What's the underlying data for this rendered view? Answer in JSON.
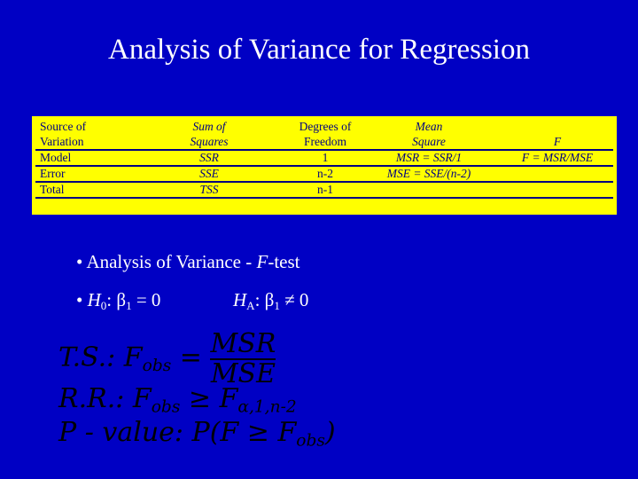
{
  "title": "Analysis of Variance for Regression",
  "table": {
    "header": [
      [
        "Source of",
        "Variation"
      ],
      [
        "Sum of",
        "Squares"
      ],
      [
        "Degrees of",
        "Freedom"
      ],
      [
        "Mean",
        "Square"
      ],
      [
        "F"
      ]
    ],
    "rows": [
      [
        "Model",
        "SSR",
        "1",
        "MSR = SSR/1",
        "F = MSR/MSE"
      ],
      [
        "Error",
        "SSE",
        "n-2",
        "MSE = SSE/(n-2)"
      ],
      [
        "Total",
        "TSS",
        "n-1"
      ]
    ]
  },
  "bullets": [
    [
      [
        {
          "text": "• Analysis of Variance - "
        },
        {
          "text": "F",
          "style": "i"
        },
        {
          "text": "-test"
        }
      ]
    ],
    [
      [
        {
          "text": "• "
        },
        {
          "text": "H",
          "style": "i"
        },
        {
          "text": "0",
          "style": "sub"
        },
        {
          "text": ": β"
        },
        {
          "text": "1",
          "style": "sub"
        },
        {
          "text": " = 0"
        }
      ],
      [
        {
          "text": "H",
          "style": "i"
        },
        {
          "text": "A",
          "style": "sub"
        },
        {
          "text": ": β"
        },
        {
          "text": "1",
          "style": "sub"
        },
        {
          "text": " ≠ 0"
        }
      ]
    ]
  ],
  "formulas": [
    {
      "parts": [
        {
          "text": "T.S.: F"
        },
        {
          "text": "obs",
          "style": "sub"
        },
        {
          "text": " = "
        }
      ],
      "numerator": "MSR",
      "denominator": "MSE"
    },
    {
      "parts": [
        {
          "text": "R.R.: F"
        },
        {
          "text": "obs",
          "style": "sub"
        },
        {
          "text": " ≥ F"
        },
        {
          "text": "α,1,n-2",
          "style": "sub"
        }
      ]
    },
    {
      "parts": [
        {
          "text": "P - value: P(F ≥ F"
        },
        {
          "text": "obs",
          "style": "sub"
        },
        {
          "text": ")"
        }
      ]
    }
  ]
}
